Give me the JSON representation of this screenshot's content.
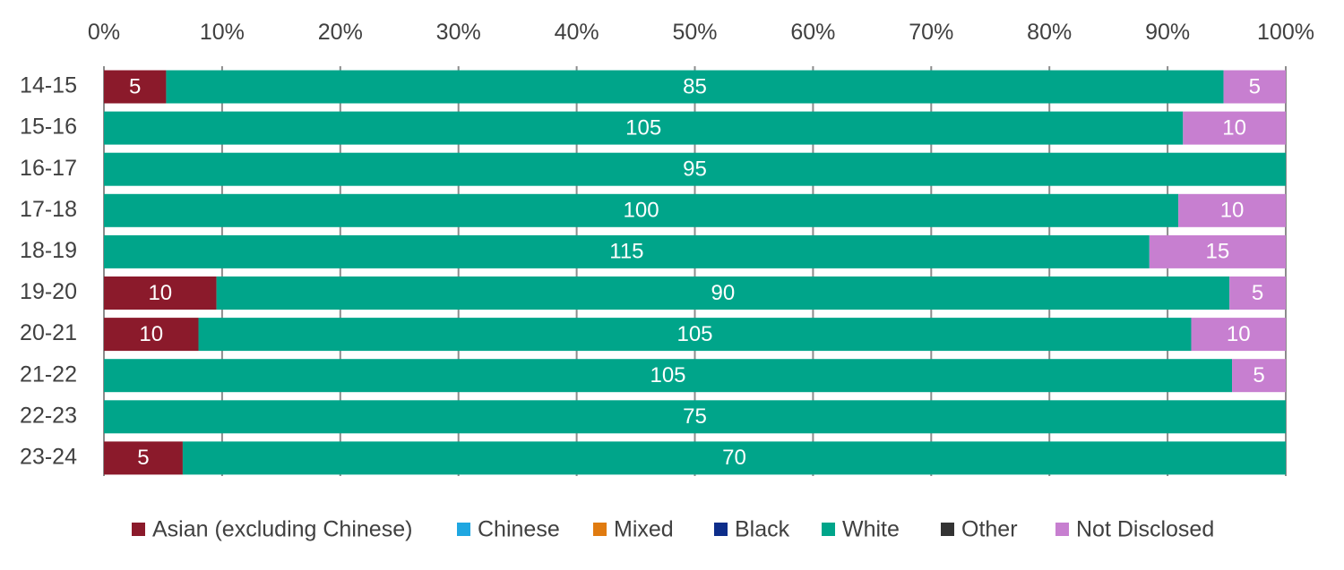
{
  "chart_data": {
    "type": "bar",
    "orientation": "horizontal",
    "stacked": "percent",
    "title": "",
    "xlabel": "",
    "ylabel": "",
    "xlim": [
      0,
      100
    ],
    "x_ticks": [
      "0%",
      "10%",
      "20%",
      "30%",
      "40%",
      "50%",
      "60%",
      "70%",
      "80%",
      "90%",
      "100%"
    ],
    "x_axis_position": "top",
    "grid": true,
    "legend_position": "bottom",
    "categories": [
      "14-15",
      "15-16",
      "16-17",
      "17-18",
      "18-19",
      "19-20",
      "20-21",
      "21-22",
      "22-23",
      "23-24"
    ],
    "series": [
      {
        "name": "Asian (excluding Chinese)",
        "color": "#8b1a2b",
        "values": [
          5,
          0,
          0,
          0,
          0,
          10,
          10,
          0,
          0,
          5
        ]
      },
      {
        "name": "Chinese",
        "color": "#1fa7e1",
        "values": [
          0,
          0,
          0,
          0,
          0,
          0,
          0,
          0,
          0,
          0
        ]
      },
      {
        "name": "Mixed",
        "color": "#e07b10",
        "values": [
          0,
          0,
          0,
          0,
          0,
          0,
          0,
          0,
          0,
          0
        ]
      },
      {
        "name": "Black",
        "color": "#0d2d8a",
        "values": [
          0,
          0,
          0,
          0,
          0,
          0,
          0,
          0,
          0,
          0
        ]
      },
      {
        "name": "White",
        "color": "#00a58a",
        "values": [
          85,
          105,
          95,
          100,
          115,
          90,
          105,
          105,
          75,
          70
        ]
      },
      {
        "name": "Other",
        "color": "#333333",
        "values": [
          0,
          0,
          0,
          0,
          0,
          0,
          0,
          0,
          0,
          0
        ]
      },
      {
        "name": "Not Disclosed",
        "color": "#c77fd0",
        "values": [
          5,
          10,
          0,
          10,
          15,
          5,
          10,
          5,
          0,
          0
        ]
      }
    ]
  },
  "colors": {
    "gridline": "#8c8c8c",
    "text": "#404040",
    "data_label": "#ffffff"
  }
}
